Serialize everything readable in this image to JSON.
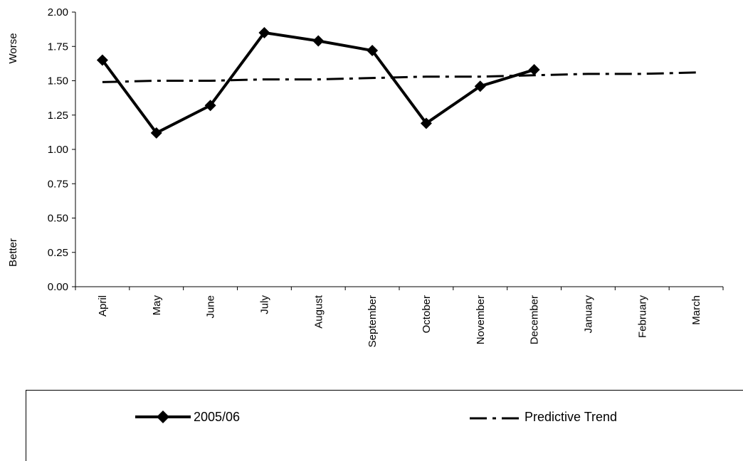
{
  "chart_data": {
    "type": "line",
    "categories": [
      "April",
      "May",
      "June",
      "July",
      "August",
      "September",
      "October",
      "November",
      "December",
      "January",
      "February",
      "March"
    ],
    "series": [
      {
        "name": "2005/06",
        "style": "solid-diamond",
        "color": "#000000",
        "values": [
          1.65,
          1.12,
          1.32,
          1.85,
          1.79,
          1.72,
          1.19,
          1.46,
          1.58,
          null,
          null,
          null
        ]
      },
      {
        "name": "Predictive Trend",
        "style": "dash-dot",
        "color": "#000000",
        "values": [
          1.49,
          1.5,
          1.5,
          1.51,
          1.51,
          1.52,
          1.53,
          1.53,
          1.54,
          1.55,
          1.55,
          1.56
        ]
      }
    ],
    "ylim": [
      0,
      2.0
    ],
    "yticks": [
      "0.00",
      "0.25",
      "0.50",
      "0.75",
      "1.00",
      "1.25",
      "1.50",
      "1.75",
      "2.00"
    ],
    "ytick_values": [
      0,
      0.25,
      0.5,
      0.75,
      1.0,
      1.25,
      1.5,
      1.75,
      2.0
    ],
    "y_side_labels": {
      "top": "Worse",
      "bottom": "Better"
    },
    "grid": false,
    "legend_position": "bottom"
  }
}
